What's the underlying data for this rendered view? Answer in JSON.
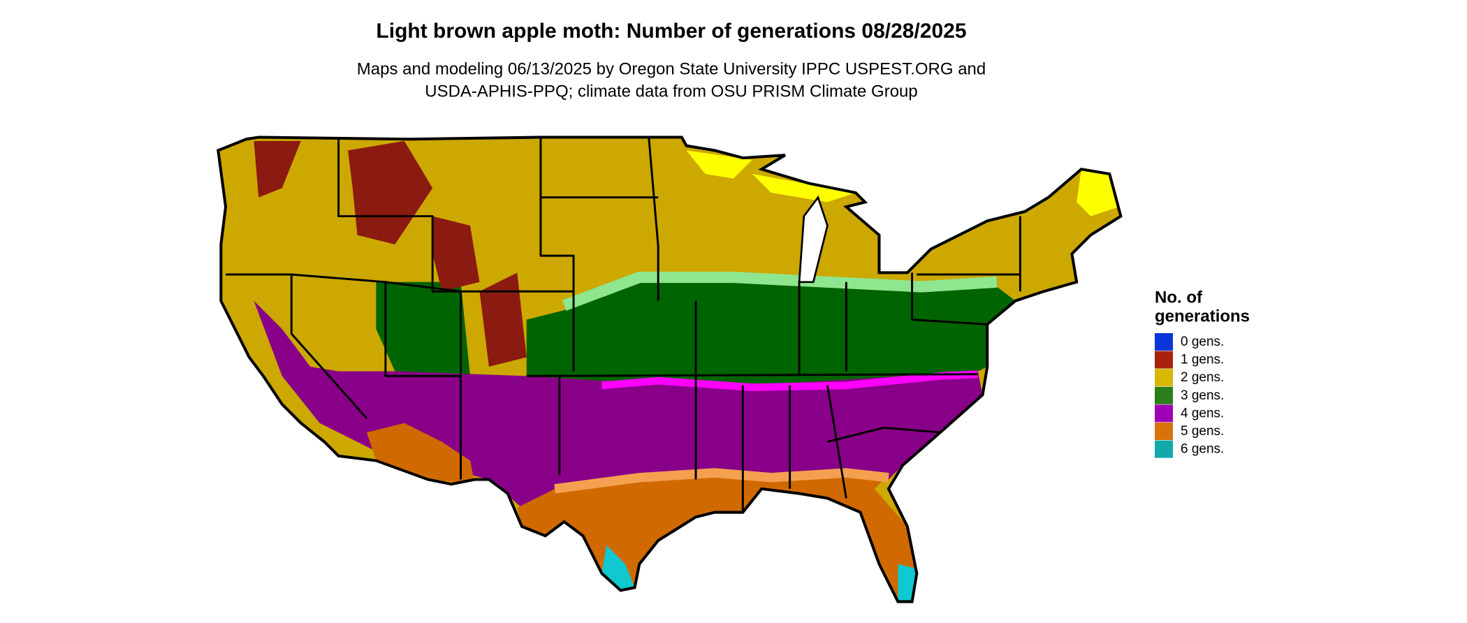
{
  "header": {
    "title": "Light brown apple moth: Number of generations 08/28/2025",
    "subtitle": [
      "Maps and modeling 06/13/2025 by Oregon State University IPPC USPEST.ORG and",
      "USDA-APHIS-PPQ; climate data from OSU PRISM Climate Group"
    ]
  },
  "legend": {
    "title": [
      "No. of",
      "generations"
    ],
    "items": [
      {
        "label": "0 gens.",
        "color": "#0a35d8"
      },
      {
        "label": "1 gens.",
        "color": "#a8220f"
      },
      {
        "label": "2 gens.",
        "color": "#d6b800"
      },
      {
        "label": "3 gens.",
        "color": "#2c7d1c"
      },
      {
        "label": "4 gens.",
        "color": "#a000b4"
      },
      {
        "label": "5 gens.",
        "color": "#d8720c"
      },
      {
        "label": "6 gens.",
        "color": "#12a9ad"
      }
    ]
  }
}
